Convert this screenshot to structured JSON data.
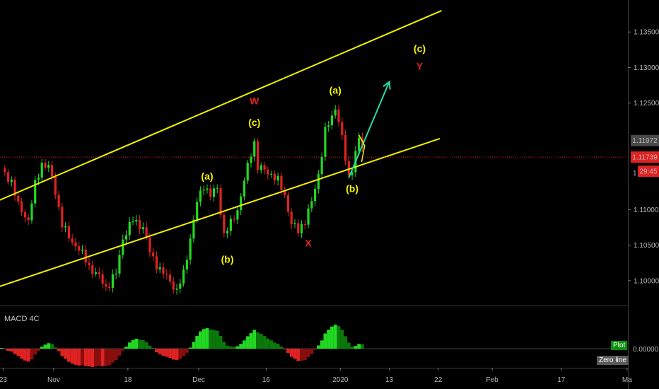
{
  "chart_data": {
    "type": "candlestick",
    "price_axis": {
      "range": [
        1.0965,
        1.1395
      ],
      "ticks": [
        "1.10000",
        "1.10500",
        "1.11000",
        "1.12500",
        "1.13000",
        "1.13500"
      ],
      "last_price_label": "1.11972",
      "current_price_label": "1.11739",
      "current_price_partial": "1",
      "countdown": "29:45"
    },
    "time_axis": {
      "ticks": [
        "23",
        "Nov",
        "18",
        "Dec",
        "16",
        "2020",
        "13",
        "22",
        "Feb",
        "17",
        "Ma"
      ]
    },
    "colors": {
      "up": "#22d822",
      "down": "#e02222",
      "channel": "#f0f000",
      "arrow": "#22ddaa",
      "red_label": "#e02222",
      "yellow_label": "#f5f500",
      "price_line": "#e02222"
    },
    "waypoints": [
      [
        0,
        1.1155
      ],
      [
        3,
        1.114
      ],
      [
        5,
        1.1105
      ],
      [
        8,
        1.1085
      ],
      [
        10,
        1.1135
      ],
      [
        12,
        1.1165
      ],
      [
        14,
        1.116
      ],
      [
        16,
        1.1125
      ],
      [
        18,
        1.108
      ],
      [
        20,
        1.106
      ],
      [
        23,
        1.1045
      ],
      [
        26,
        1.102
      ],
      [
        29,
        1.1005
      ],
      [
        31,
        1.099
      ],
      [
        34,
        1.101
      ],
      [
        36,
        1.106
      ],
      [
        39,
        1.1085
      ],
      [
        42,
        1.1075
      ],
      [
        44,
        1.104
      ],
      [
        47,
        1.1015
      ],
      [
        50,
        1.1
      ],
      [
        52,
        1.0985
      ],
      [
        54,
        1.101
      ],
      [
        56,
        1.106
      ],
      [
        58,
        1.111
      ],
      [
        60,
        1.1135
      ],
      [
        62,
        1.112
      ],
      [
        64,
        1.113
      ],
      [
        66,
        1.1065
      ],
      [
        68,
        1.108
      ],
      [
        70,
        1.11
      ],
      [
        72,
        1.114
      ],
      [
        74,
        1.118
      ],
      [
        75,
        1.1195
      ],
      [
        76,
        1.116
      ],
      [
        78,
        1.1155
      ],
      [
        80,
        1.115
      ],
      [
        82,
        1.114
      ],
      [
        84,
        1.112
      ],
      [
        86,
        1.108
      ],
      [
        88,
        1.107
      ],
      [
        90,
        1.1085
      ],
      [
        92,
        1.111
      ],
      [
        94,
        1.115
      ],
      [
        96,
        1.121
      ],
      [
        98,
        1.123
      ],
      [
        99,
        1.1245
      ],
      [
        100,
        1.1225
      ],
      [
        101,
        1.12
      ],
      [
        102,
        1.117
      ],
      [
        103,
        1.1145
      ],
      [
        104,
        1.116
      ],
      [
        105,
        1.118
      ],
      [
        106,
        1.12
      ],
      [
        107,
        1.1185
      ]
    ],
    "channel_upper": [
      [
        -14.5,
        1.1085
      ],
      [
        130.5,
        1.138
      ]
    ],
    "channel_lower": [
      [
        -20.5,
        1.096
      ],
      [
        130,
        1.12
      ]
    ],
    "arrow": [
      [
        103,
        1.1145
      ],
      [
        115,
        1.128
      ]
    ],
    "wave_labels": [
      {
        "text": "W",
        "candle": 75,
        "price": 1.1248,
        "color": "red"
      },
      {
        "text": "(c)",
        "candle": 75,
        "price": 1.1218,
        "color": "yellow"
      },
      {
        "text": "(a)",
        "candle": 61,
        "price": 1.1142,
        "color": "yellow"
      },
      {
        "text": "(b)",
        "candle": 67,
        "price": 1.1025,
        "color": "yellow"
      },
      {
        "text": "X",
        "candle": 91,
        "price": 1.1048,
        "color": "red"
      },
      {
        "text": "(a)",
        "candle": 99,
        "price": 1.1263,
        "color": "yellow"
      },
      {
        "text": "(b)",
        "candle": 104,
        "price": 1.1125,
        "color": "yellow"
      },
      {
        "text": "(c)",
        "candle": 124,
        "price": 1.1322,
        "color": "yellow"
      },
      {
        "text": "Y",
        "candle": 124,
        "price": 1.1297,
        "color": "red"
      }
    ],
    "macd_title": "MACD 4C",
    "macd_zero_label": "0.00000",
    "macd_badges": {
      "plot": "Plot",
      "zero": "Zero line"
    }
  }
}
